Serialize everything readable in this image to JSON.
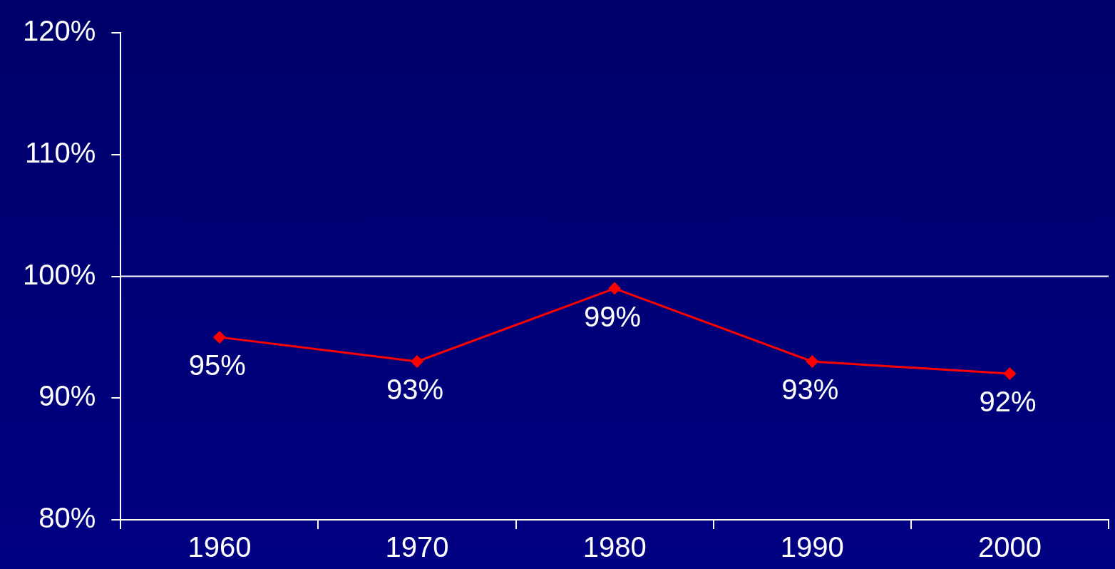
{
  "chart_data": {
    "type": "line",
    "categories": [
      "1960",
      "1970",
      "1980",
      "1990",
      "2000"
    ],
    "series": [
      {
        "color": "#ff0000",
        "values": [
          95,
          93,
          99,
          93,
          92
        ],
        "value_labels": [
          "95%",
          "93%",
          "99%",
          "93%",
          "92%"
        ]
      }
    ],
    "ylim": [
      80,
      120
    ],
    "yticks": [
      {
        "value": 80,
        "label": "80%"
      },
      {
        "value": 90,
        "label": "90%"
      },
      {
        "value": 100,
        "label": "100%"
      },
      {
        "value": 110,
        "label": "110%"
      },
      {
        "value": 120,
        "label": "120%"
      }
    ],
    "ref_lines": [
      {
        "axis": "y",
        "value": 100,
        "color": "#ffffff"
      }
    ],
    "marker": "diamond",
    "line_style": "solid",
    "legend": false,
    "grid": false
  }
}
